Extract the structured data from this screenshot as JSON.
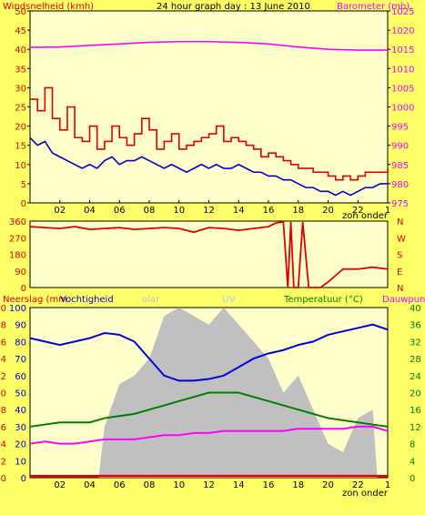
{
  "title": "24 hour graph day : 13 June 2010",
  "colors": {
    "bg": "#ffff66",
    "plot": "#ffffcc",
    "wind": "#e00000",
    "gust": "#0000d0",
    "baro": "#ff00ff",
    "dir": "#e00000",
    "hum": "#0000e0",
    "temp": "#008000",
    "dew": "#ff00ff",
    "solar": "#c0c0c0",
    "uv": "#aaccff",
    "rain": "#e00000"
  },
  "chart_data": [
    {
      "type": "line",
      "title": "24 hour graph day : 13 June 2010",
      "ylabel": "Windsnelheid (kmh)",
      "y2label": "Barometer (mb)",
      "ylim": [
        0,
        50
      ],
      "y_ticks": [
        "0",
        "5",
        "10",
        "15",
        "20",
        "25",
        "30",
        "35",
        "40",
        "45",
        "50"
      ],
      "y2lim": [
        975,
        1025
      ],
      "y2_ticks": [
        "975",
        "980",
        "985",
        "990",
        "995",
        "1000",
        "1005",
        "1010",
        "1015",
        "1020",
        "1025"
      ],
      "x_ticks": [
        "02",
        "04",
        "06",
        "08",
        "10",
        "12",
        "14",
        "16",
        "18",
        "20",
        "22",
        "1"
      ],
      "x_note": "zon onder",
      "series": [
        {
          "key": "wind",
          "x": [
            0,
            0.5,
            1,
            1.5,
            2,
            2.5,
            3,
            3.5,
            4,
            4.5,
            5,
            5.5,
            6,
            6.5,
            7,
            7.5,
            8,
            8.5,
            9,
            9.5,
            10,
            10.5,
            11,
            11.5,
            12,
            12.5,
            13,
            13.5,
            14,
            14.5,
            15,
            15.5,
            16,
            16.5,
            17,
            17.5,
            18,
            18.5,
            19,
            19.5,
            20,
            20.5,
            21,
            21.5,
            22,
            22.5,
            23,
            23.5,
            24
          ],
          "y": [
            27,
            24,
            30,
            22,
            19,
            25,
            17,
            16,
            20,
            14,
            16,
            20,
            17,
            15,
            18,
            22,
            19,
            14,
            16,
            18,
            14,
            15,
            16,
            17,
            18,
            20,
            16,
            17,
            16,
            15,
            14,
            12,
            13,
            12,
            11,
            10,
            9,
            9,
            8,
            8,
            7,
            6,
            7,
            6,
            7,
            8,
            8,
            8,
            9
          ]
        },
        {
          "key": "gust",
          "x": [
            0,
            0.5,
            1,
            1.5,
            2,
            2.5,
            3,
            3.5,
            4,
            4.5,
            5,
            5.5,
            6,
            6.5,
            7,
            7.5,
            8,
            8.5,
            9,
            9.5,
            10,
            10.5,
            11,
            11.5,
            12,
            12.5,
            13,
            13.5,
            14,
            14.5,
            15,
            15.5,
            16,
            16.5,
            17,
            17.5,
            18,
            18.5,
            19,
            19.5,
            20,
            20.5,
            21,
            21.5,
            22,
            22.5,
            23,
            23.5,
            24
          ],
          "y": [
            17,
            15,
            16,
            13,
            12,
            11,
            10,
            9,
            10,
            9,
            11,
            12,
            10,
            11,
            11,
            12,
            11,
            10,
            9,
            10,
            9,
            8,
            9,
            10,
            9,
            10,
            9,
            9,
            10,
            9,
            8,
            8,
            7,
            7,
            6,
            6,
            5,
            4,
            4,
            3,
            3,
            2,
            3,
            2,
            3,
            4,
            4,
            5,
            5
          ]
        },
        {
          "key": "baro",
          "axis": "y2",
          "x": [
            0,
            2,
            4,
            6,
            8,
            10,
            12,
            14,
            16,
            18,
            20,
            22,
            24
          ],
          "y": [
            1015.5,
            1015.6,
            1016,
            1016.4,
            1016.8,
            1017,
            1017,
            1016.8,
            1016.4,
            1015.6,
            1015,
            1014.8,
            1014.8
          ]
        }
      ]
    },
    {
      "type": "line",
      "ylim": [
        0,
        360
      ],
      "y_ticks": [
        "0",
        "90",
        "180",
        "270",
        "360"
      ],
      "y2_ticks": [
        "N",
        "E",
        "S",
        "W",
        "N"
      ],
      "series": [
        {
          "key": "dir",
          "x": [
            0,
            1,
            2,
            3,
            4,
            5,
            6,
            7,
            8,
            9,
            10,
            11,
            12,
            13,
            14,
            15,
            16,
            16.5,
            17,
            17.3,
            17.5,
            17.7,
            18,
            18.3,
            18.7,
            19,
            19.5,
            20,
            21,
            22,
            23,
            24
          ],
          "y": [
            330,
            325,
            320,
            330,
            315,
            320,
            325,
            315,
            320,
            325,
            320,
            300,
            325,
            320,
            310,
            320,
            330,
            350,
            355,
            0,
            355,
            0,
            0,
            355,
            0,
            0,
            0,
            30,
            100,
            100,
            110,
            100
          ]
        }
      ]
    },
    {
      "type": "line",
      "ylabel": "Neerslag (mm",
      "y1label": "Vochtigheid",
      "y1b": "olar",
      "uv_label": "UV",
      "y2label": "Temperatuur (°C)",
      "y3label": "Dauwpunt",
      "y_ticks": [
        "0",
        "2",
        "4",
        "6",
        "8",
        "10",
        "12",
        "14",
        "16",
        "18",
        "20"
      ],
      "h_ticks": [
        "0",
        "10",
        "20",
        "30",
        "40",
        "50",
        "60",
        "70",
        "80",
        "90",
        "100"
      ],
      "t_ticks": [
        "0",
        "4",
        "8",
        "12",
        "16",
        "20",
        "24",
        "28",
        "32",
        "36",
        "40"
      ],
      "x_ticks": [
        "02",
        "04",
        "06",
        "08",
        "10",
        "12",
        "14",
        "16",
        "18",
        "20",
        "22",
        "1"
      ],
      "x_note": "zon onder",
      "series": [
        {
          "key": "hum",
          "x": [
            0,
            1,
            2,
            3,
            4,
            5,
            6,
            7,
            8,
            9,
            10,
            11,
            12,
            13,
            14,
            15,
            16,
            17,
            18,
            19,
            20,
            21,
            22,
            23,
            24
          ],
          "y": [
            82,
            80,
            78,
            80,
            82,
            85,
            84,
            80,
            70,
            60,
            57,
            57,
            58,
            60,
            65,
            70,
            73,
            75,
            78,
            80,
            84,
            86,
            88,
            90,
            87
          ]
        },
        {
          "key": "temp",
          "x": [
            0,
            1,
            2,
            3,
            4,
            5,
            6,
            7,
            8,
            9,
            10,
            11,
            12,
            13,
            14,
            15,
            16,
            17,
            18,
            19,
            20,
            21,
            22,
            23,
            24
          ],
          "y": [
            12,
            12.5,
            13,
            13,
            13,
            14,
            14.5,
            15,
            16,
            17,
            18,
            19,
            20,
            20,
            20,
            19,
            18,
            17,
            16,
            15,
            14,
            13.5,
            13,
            12.5,
            12
          ]
        },
        {
          "key": "dew",
          "x": [
            0,
            1,
            2,
            3,
            4,
            5,
            6,
            7,
            8,
            9,
            10,
            11,
            12,
            13,
            14,
            15,
            16,
            17,
            18,
            19,
            20,
            21,
            22,
            23,
            24
          ],
          "y": [
            8,
            8.5,
            8,
            8,
            8.5,
            9,
            9,
            9,
            9.5,
            10,
            10,
            10.5,
            10.5,
            11,
            11,
            11,
            11,
            11,
            11.5,
            11.5,
            11.5,
            11.5,
            12,
            12,
            11
          ]
        },
        {
          "key": "solar",
          "x": [
            4.6,
            5,
            6,
            7,
            8,
            9,
            10,
            11,
            12,
            13,
            14,
            15,
            16,
            17,
            18,
            19,
            20,
            21,
            22,
            23,
            23.3
          ],
          "y": [
            0,
            30,
            55,
            60,
            70,
            95,
            100,
            95,
            90,
            100,
            90,
            80,
            70,
            50,
            60,
            40,
            20,
            15,
            35,
            40,
            0
          ]
        },
        {
          "key": "rain",
          "x": [
            0,
            24
          ],
          "y": [
            0.2,
            0.2
          ]
        }
      ]
    }
  ]
}
